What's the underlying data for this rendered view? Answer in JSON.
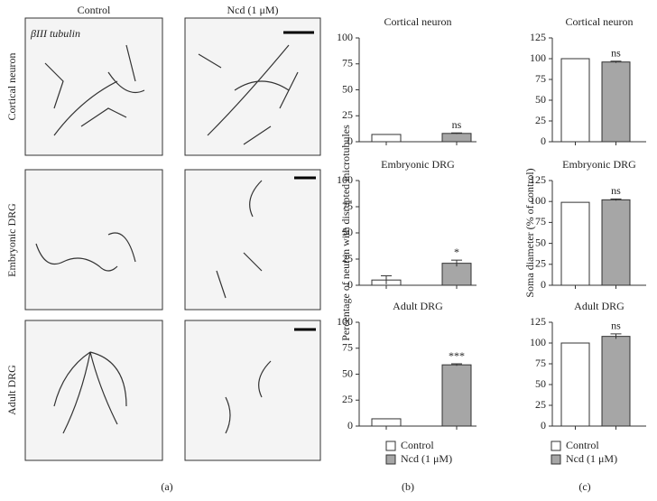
{
  "micrographs": {
    "columns": [
      "Control",
      "Ncd (1 μM)"
    ],
    "stain": "βIII tubulin",
    "rows": [
      "Cortical neuron",
      "Embryonic DRG",
      "Adult DRG"
    ]
  },
  "panel_labels": [
    "(a)",
    "(b)",
    "(c)"
  ],
  "legend": {
    "labels": [
      "Control",
      "Ncd (1 μM)"
    ],
    "colors": [
      "#ffffff",
      "#a6a6a6"
    ]
  },
  "chart_data": [
    {
      "type": "bar",
      "title": "Cortical neuron",
      "values": [
        7,
        8
      ],
      "errors": [
        0,
        0.5
      ],
      "annotations": [
        null,
        "ns"
      ],
      "ylim": [
        0,
        100
      ],
      "yticks": [
        0,
        25,
        50,
        75,
        100
      ]
    },
    {
      "type": "bar",
      "title": "Embryonic DRG",
      "ylabel": "Percentage of neuron with disrupted microtubules",
      "values": [
        5,
        21
      ],
      "errors": [
        4,
        3
      ],
      "annotations": [
        null,
        "*"
      ],
      "ylim": [
        0,
        100
      ],
      "yticks": [
        0,
        25,
        50,
        75,
        100
      ]
    },
    {
      "type": "bar",
      "title": "Adult DRG",
      "values": [
        7,
        59
      ],
      "errors": [
        0,
        1
      ],
      "annotations": [
        null,
        "***"
      ],
      "ylim": [
        0,
        100
      ],
      "yticks": [
        0,
        25,
        50,
        75,
        100
      ]
    },
    {
      "type": "bar",
      "title": "Cortical neuron",
      "values": [
        100,
        96
      ],
      "errors": [
        0,
        1
      ],
      "annotations": [
        null,
        "ns"
      ],
      "ylim": [
        0,
        125
      ],
      "yticks": [
        0,
        25,
        50,
        75,
        100,
        125
      ]
    },
    {
      "type": "bar",
      "title": "Embryonic DRG",
      "ylabel": "Soma diameter (% of control)",
      "values": [
        99,
        102
      ],
      "errors": [
        0,
        1
      ],
      "annotations": [
        null,
        "ns"
      ],
      "ylim": [
        0,
        125
      ],
      "yticks": [
        0,
        25,
        50,
        75,
        100,
        125
      ]
    },
    {
      "type": "bar",
      "title": "Adult DRG",
      "values": [
        100,
        108
      ],
      "errors": [
        0,
        3
      ],
      "annotations": [
        null,
        "ns"
      ],
      "ylim": [
        0,
        125
      ],
      "yticks": [
        0,
        25,
        50,
        75,
        100,
        125
      ]
    }
  ]
}
